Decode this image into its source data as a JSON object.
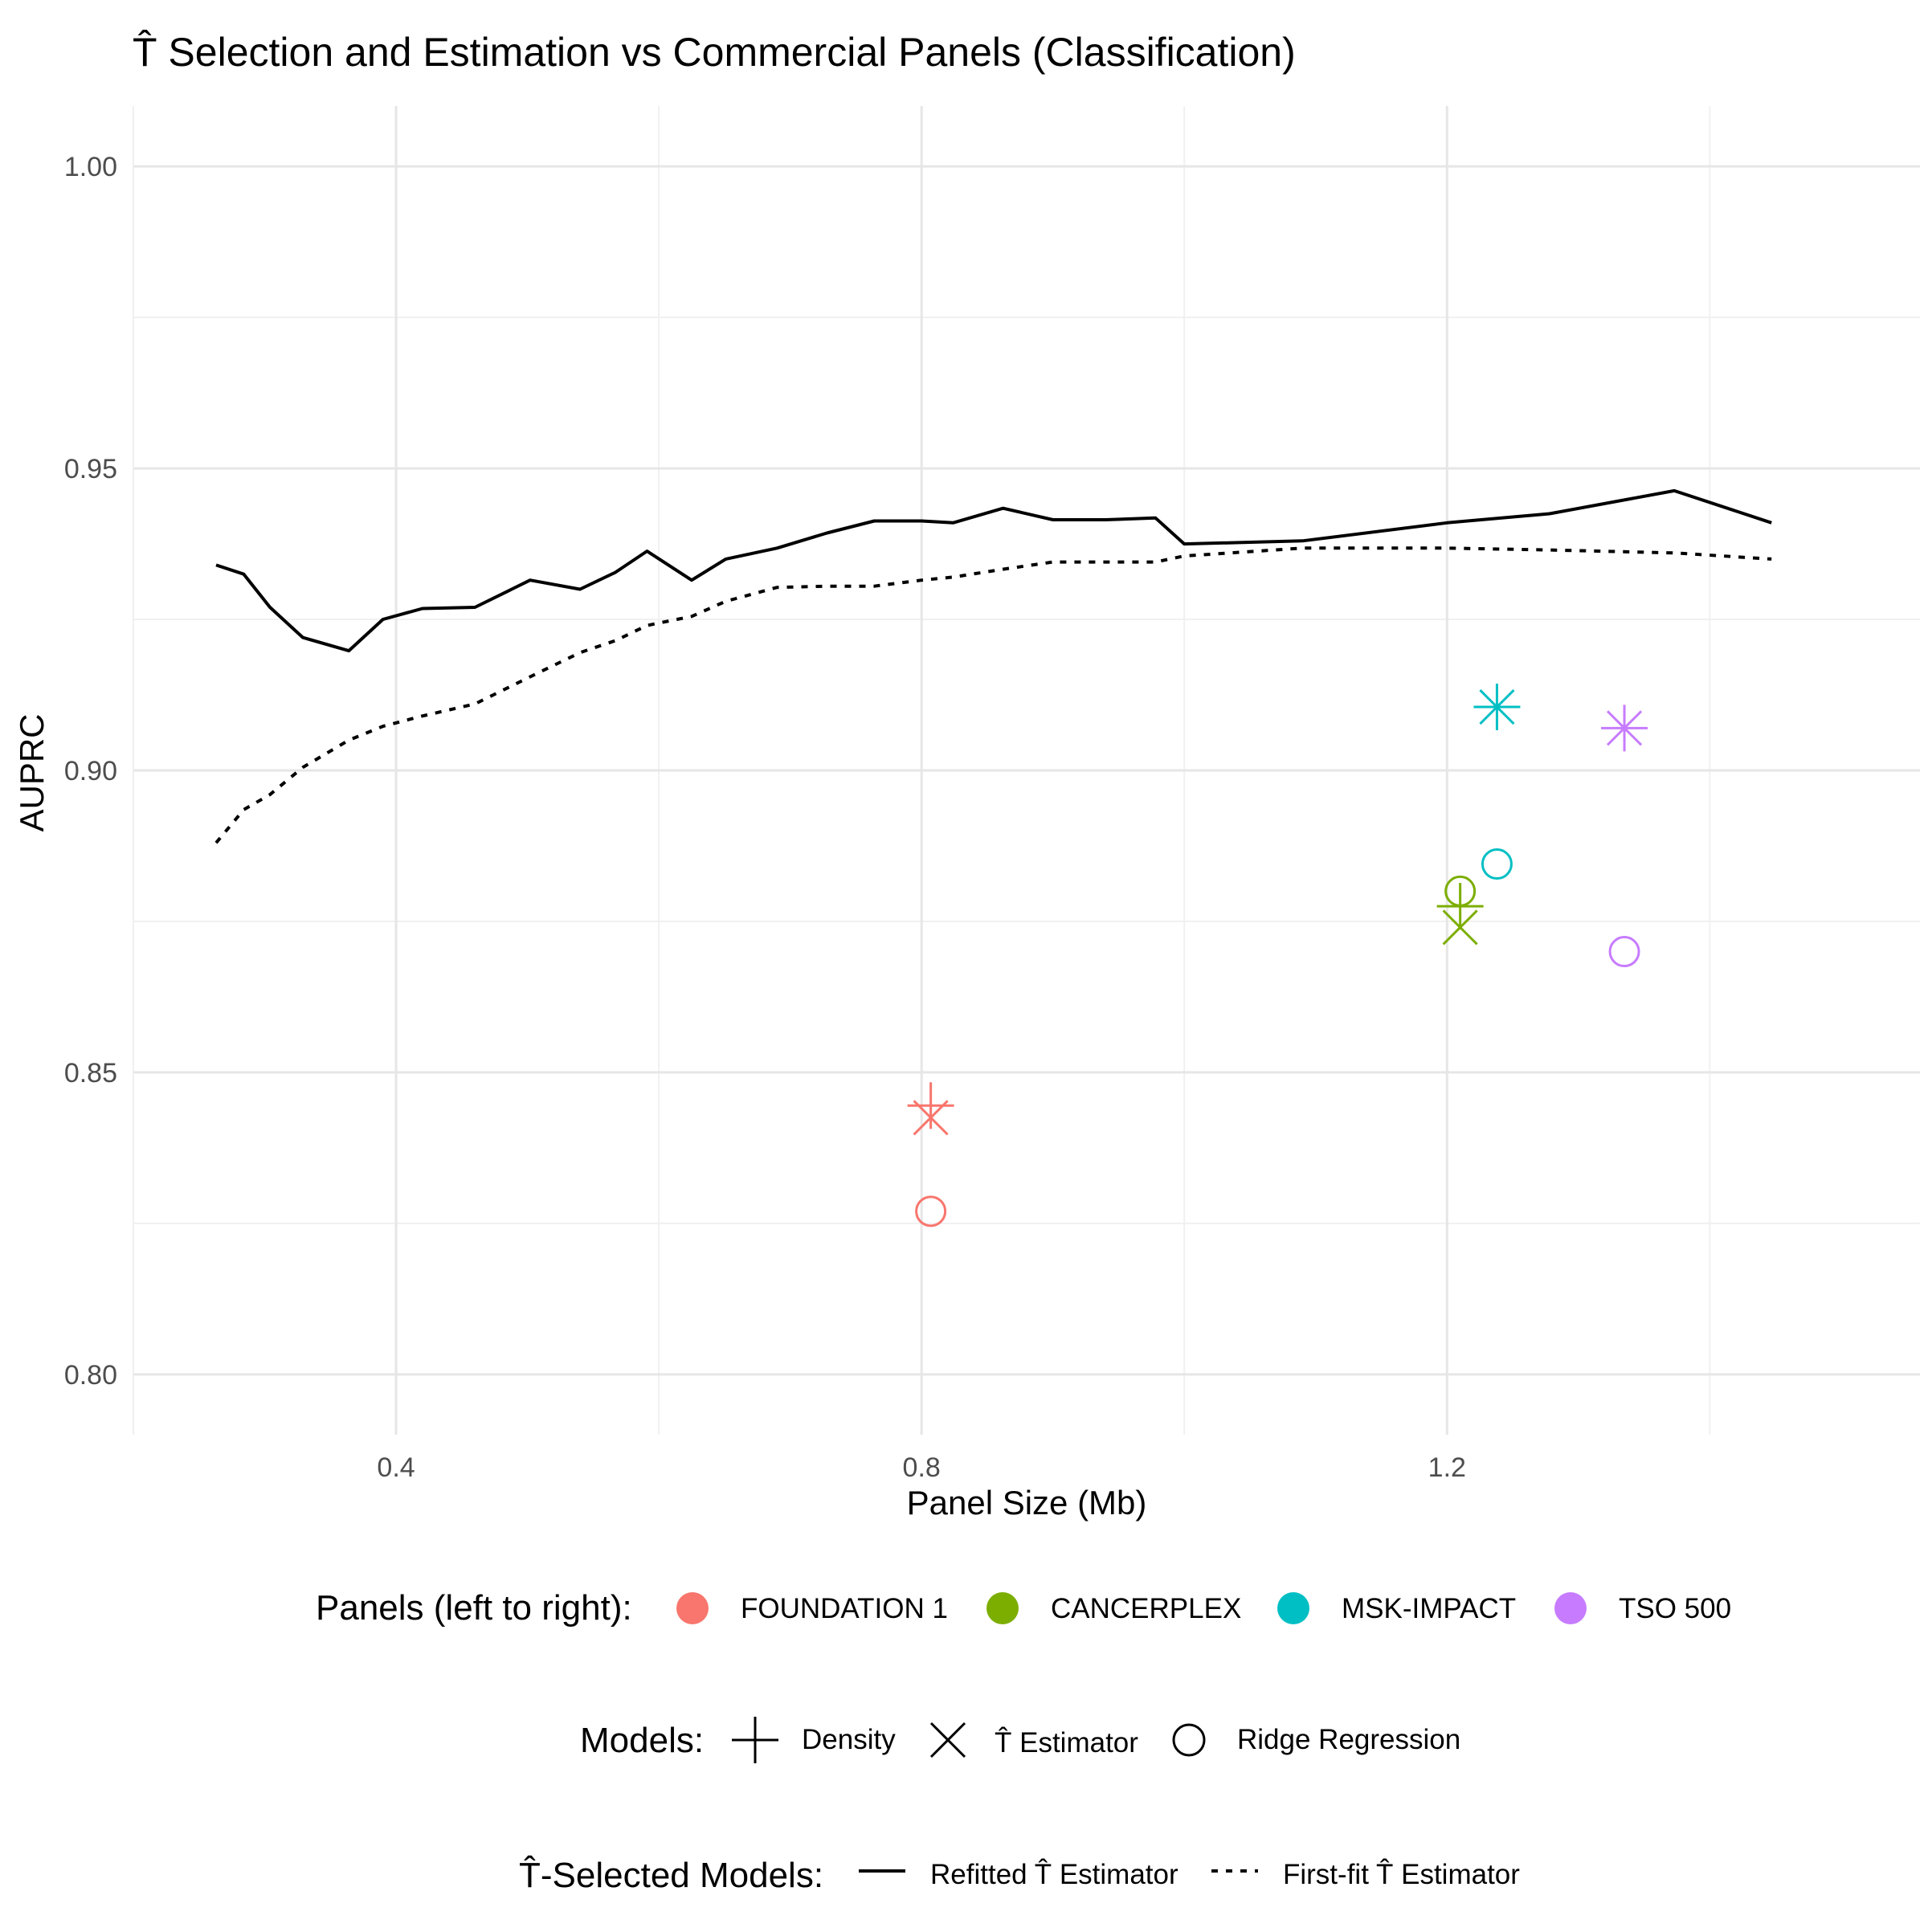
{
  "chart_data": {
    "type": "line",
    "title": "T̂ Selection and Estimation vs Commercial Panels (Classification)",
    "xlabel": "Panel Size (Mb)",
    "ylabel": "AUPRC",
    "xlim": [
      0.2,
      1.56
    ],
    "ylim": [
      0.79,
      1.01
    ],
    "x_ticks": [
      {
        "value": 0.4,
        "label": "0.4"
      },
      {
        "value": 0.8,
        "label": "0.8"
      },
      {
        "value": 1.2,
        "label": "1.2"
      }
    ],
    "x_minor": [
      0.2,
      0.6,
      1.0,
      1.4
    ],
    "y_ticks": [
      {
        "value": 0.8,
        "label": "0.80"
      },
      {
        "value": 0.85,
        "label": "0.85"
      },
      {
        "value": 0.9,
        "label": "0.90"
      },
      {
        "value": 0.95,
        "label": "0.95"
      },
      {
        "value": 1.0,
        "label": "1.00"
      }
    ],
    "y_minor": [
      0.825,
      0.875,
      0.925,
      0.975
    ],
    "grid": true,
    "legend_placement": "bottom",
    "lines": [
      {
        "name": "Refitted T̂ Estimator",
        "style": "solid",
        "color": "#000000",
        "x": [
          0.263,
          0.284,
          0.304,
          0.329,
          0.364,
          0.39,
          0.42,
          0.46,
          0.502,
          0.54,
          0.567,
          0.591,
          0.625,
          0.651,
          0.69,
          0.728,
          0.764,
          0.8,
          0.824,
          0.862,
          0.9,
          0.94,
          0.978,
          1.0,
          1.09,
          1.2,
          1.278,
          1.373,
          1.447
        ],
        "y": [
          0.934,
          0.9325,
          0.927,
          0.922,
          0.9198,
          0.925,
          0.9268,
          0.927,
          0.9315,
          0.93,
          0.9328,
          0.9363,
          0.9315,
          0.935,
          0.9368,
          0.9393,
          0.9413,
          0.9413,
          0.941,
          0.9434,
          0.9415,
          0.9415,
          0.9418,
          0.9375,
          0.938,
          0.941,
          0.9425,
          0.9463,
          0.941
        ]
      },
      {
        "name": "First-fit T̂ Estimator",
        "style": "dashed",
        "color": "#000000",
        "x": [
          0.263,
          0.284,
          0.304,
          0.329,
          0.364,
          0.39,
          0.42,
          0.46,
          0.502,
          0.54,
          0.567,
          0.591,
          0.625,
          0.651,
          0.69,
          0.728,
          0.764,
          0.8,
          0.824,
          0.862,
          0.9,
          0.94,
          0.978,
          1.0,
          1.09,
          1.2,
          1.278,
          1.373,
          1.447
        ],
        "y": [
          0.888,
          0.8935,
          0.896,
          0.9005,
          0.905,
          0.9073,
          0.909,
          0.911,
          0.9155,
          0.9195,
          0.9215,
          0.924,
          0.9255,
          0.928,
          0.9303,
          0.9305,
          0.9305,
          0.9315,
          0.932,
          0.9333,
          0.9345,
          0.9345,
          0.9345,
          0.9355,
          0.9368,
          0.9368,
          0.9365,
          0.936,
          0.935
        ]
      }
    ],
    "points": [
      {
        "panel": "FOUNDATION 1",
        "model": "Density",
        "x": 0.807,
        "y": 0.8445
      },
      {
        "panel": "FOUNDATION 1",
        "model": "T̂ Estimator",
        "x": 0.807,
        "y": 0.8425
      },
      {
        "panel": "FOUNDATION 1",
        "model": "Ridge Regression",
        "x": 0.807,
        "y": 0.827
      },
      {
        "panel": "CANCERPLEX",
        "model": "Density",
        "x": 1.21,
        "y": 0.8775
      },
      {
        "panel": "CANCERPLEX",
        "model": "T̂ Estimator",
        "x": 1.21,
        "y": 0.874
      },
      {
        "panel": "CANCERPLEX",
        "model": "Ridge Regression",
        "x": 1.21,
        "y": 0.88
      },
      {
        "panel": "MSK-IMPACT",
        "model": "Density",
        "x": 1.238,
        "y": 0.9105
      },
      {
        "panel": "MSK-IMPACT",
        "model": "T̂ Estimator",
        "x": 1.238,
        "y": 0.9105
      },
      {
        "panel": "MSK-IMPACT",
        "model": "Ridge Regression",
        "x": 1.238,
        "y": 0.8845
      },
      {
        "panel": "TSO 500",
        "model": "Density",
        "x": 1.335,
        "y": 0.907
      },
      {
        "panel": "TSO 500",
        "model": "T̂ Estimator",
        "x": 1.335,
        "y": 0.907
      },
      {
        "panel": "TSO 500",
        "model": "Ridge Regression",
        "x": 1.335,
        "y": 0.87
      }
    ],
    "legends": {
      "panels": {
        "title": "Panels (left to right):",
        "items": [
          {
            "label": "FOUNDATION 1",
            "color": "#F8766D"
          },
          {
            "label": "CANCERPLEX",
            "color": "#7CAE00"
          },
          {
            "label": "MSK-IMPACT",
            "color": "#00BFC4"
          },
          {
            "label": "TSO 500",
            "color": "#C77CFF"
          }
        ]
      },
      "models": {
        "title": "Models:",
        "items": [
          {
            "label": "Density",
            "shape": "plus"
          },
          {
            "label": "T̂ Estimator",
            "shape": "cross"
          },
          {
            "label": "Ridge Regression",
            "shape": "circle"
          }
        ]
      },
      "selected": {
        "title": "T̂-Selected Models:",
        "items": [
          {
            "label": "Refitted T̂ Estimator",
            "style": "solid"
          },
          {
            "label": "First-fit T̂ Estimator",
            "style": "dashed"
          }
        ]
      }
    }
  }
}
